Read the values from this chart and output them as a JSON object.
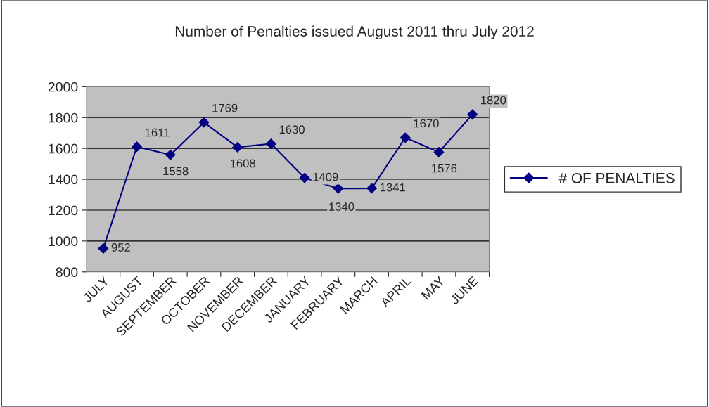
{
  "chart_data": {
    "type": "line",
    "title": "Number of Penalties issued August 2011 thru July 2012",
    "categories": [
      "JULY",
      "AUGUST",
      "SEPTEMBER",
      "OCTOBER",
      "NOVEMBER",
      "DECEMBER",
      "JANUARY",
      "FEBRUARY",
      "MARCH",
      "APRIL",
      "MAY",
      "JUNE"
    ],
    "series": [
      {
        "name": "# OF PENALTIES",
        "color": "#000080",
        "values": [
          952,
          1611,
          1558,
          1769,
          1608,
          1630,
          1409,
          1340,
          1341,
          1670,
          1576,
          1820
        ]
      }
    ],
    "ylim": [
      800,
      2000
    ],
    "yticks": [
      800,
      1000,
      1200,
      1400,
      1600,
      1800,
      2000
    ],
    "grid": "y",
    "legend": "right",
    "marker": "diamond",
    "line_style": "solid",
    "data_labels": true
  }
}
